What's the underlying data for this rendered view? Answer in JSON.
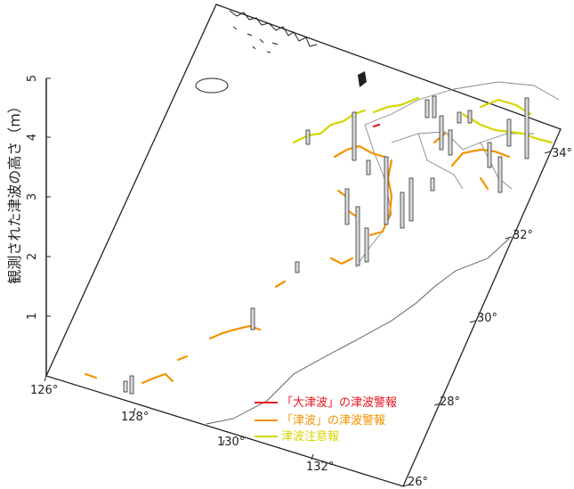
{
  "height_axis": {
    "title": "観測された津波の高さ（m）",
    "ticks": [
      "1",
      "2",
      "3",
      "4",
      "5"
    ]
  },
  "longitude_labels": [
    "126°",
    "128°",
    "130°",
    "132°"
  ],
  "latitude_labels": [
    "26°",
    "28°",
    "30°",
    "32°",
    "34°"
  ],
  "legend": {
    "items": [
      {
        "label": "「大津波」の津波警報",
        "color": "#e8141e"
      },
      {
        "label": "「津波」の津波警報",
        "color": "#f39200"
      },
      {
        "label": "津波注意報",
        "color": "#d6d600"
      }
    ]
  }
}
